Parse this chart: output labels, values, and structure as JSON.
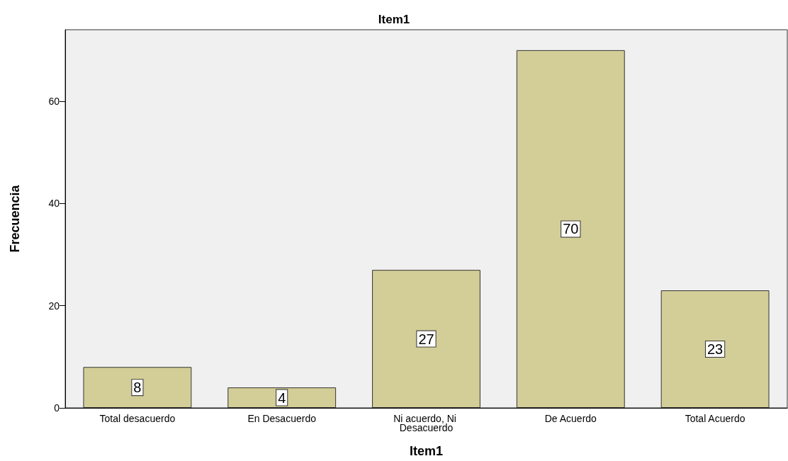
{
  "chart_data": {
    "type": "bar",
    "title": "Item1",
    "xlabel": "Item1",
    "ylabel": "Frecuencia",
    "categories": [
      "Total desacuerdo",
      "En Desacuerdo",
      "Ni acuerdo, Ni Desacuerdo",
      "De Acuerdo",
      "Total Acuerdo"
    ],
    "values": [
      8,
      4,
      27,
      70,
      23
    ],
    "color": "#d3ce97",
    "ylim": [
      0,
      74
    ],
    "yticks": [
      0,
      20,
      40,
      60
    ],
    "grid": false,
    "data_labels": true
  }
}
